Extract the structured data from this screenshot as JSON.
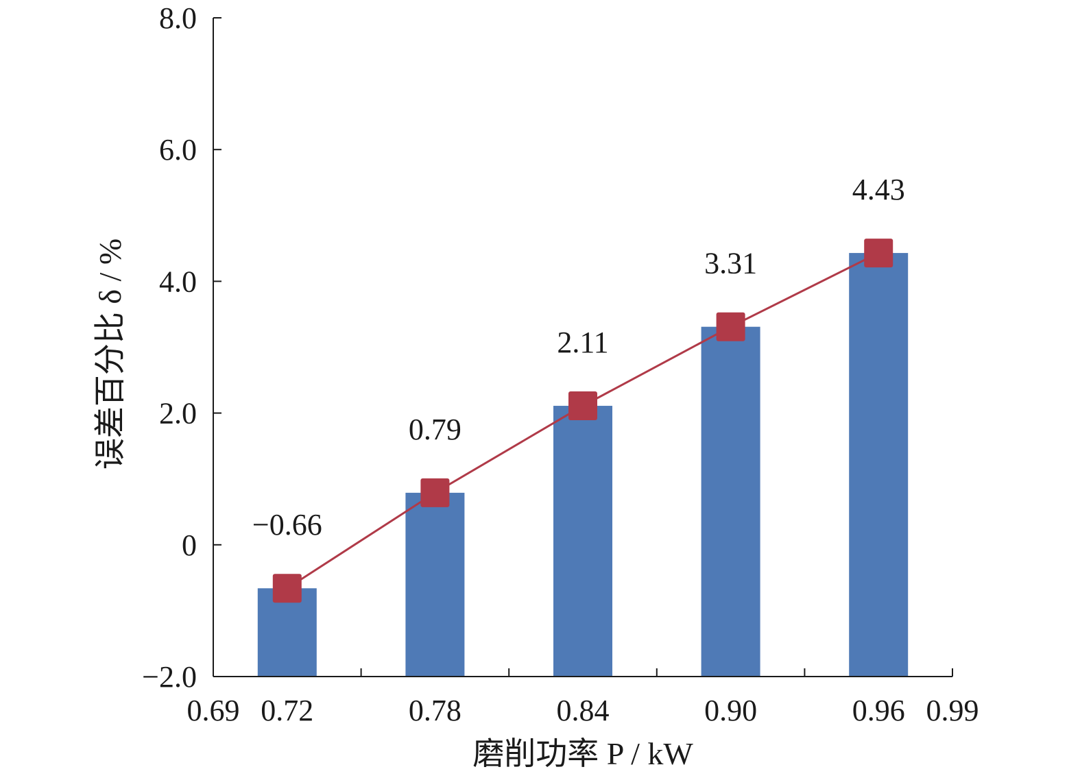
{
  "chart_data": {
    "type": "bar",
    "categories": [
      "0.72",
      "0.78",
      "0.84",
      "0.90",
      "0.96"
    ],
    "x": [
      0.72,
      0.78,
      0.84,
      0.9,
      0.96
    ],
    "values": [
      -0.66,
      0.79,
      2.11,
      3.31,
      4.43
    ],
    "data_labels": [
      "−0.66",
      "0.79",
      "2.11",
      "3.31",
      "4.43"
    ],
    "overlay_line": {
      "type": "line",
      "marker": "square",
      "values": [
        -0.66,
        0.79,
        2.11,
        3.31,
        4.43
      ]
    },
    "xlim": [
      0.69,
      0.99
    ],
    "x_tick_labels": [
      "0.69",
      "0.72",
      "0.78",
      "0.84",
      "0.90",
      "0.96",
      "0.99"
    ],
    "ylim": [
      -2.0,
      8.0
    ],
    "y_ticks": [
      -2.0,
      0,
      2.0,
      4.0,
      6.0,
      8.0
    ],
    "y_tick_labels": [
      "−2.0",
      "0",
      "2.0",
      "4.0",
      "6.0",
      "8.0"
    ],
    "xlabel": "磨削功率 P / kW",
    "ylabel": "误差百分比 δ / %",
    "grid": false,
    "colors": {
      "bar": "#4f7ab6",
      "line": "#b03a48",
      "marker": "#b03a48",
      "axis": "#1a1a1a"
    }
  }
}
